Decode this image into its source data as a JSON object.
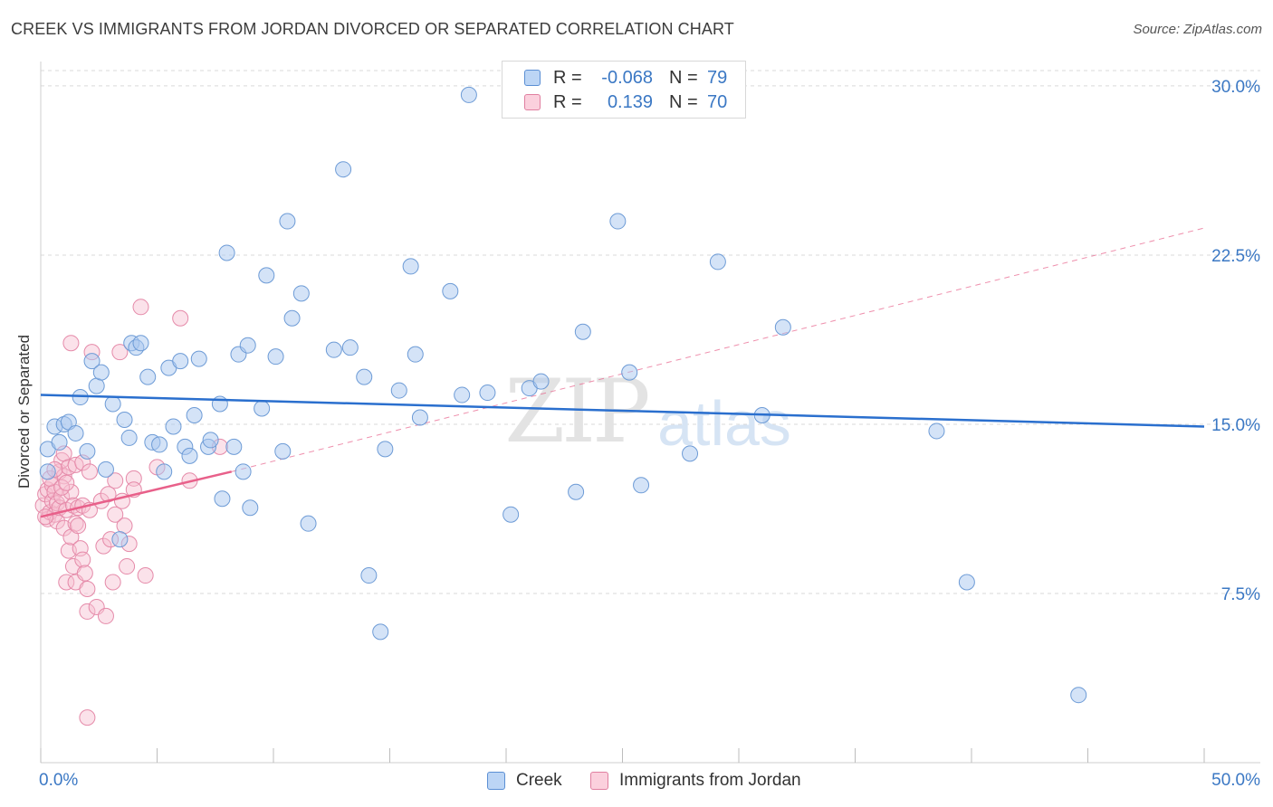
{
  "title": "CREEK VS IMMIGRANTS FROM JORDAN DIVORCED OR SEPARATED CORRELATION CHART",
  "source": "Source: ZipAtlas.com",
  "watermark": "ZIPatlas",
  "legend": {
    "rows": [
      {
        "r_label": "R =",
        "r_value": "-0.068",
        "n_label": "N =",
        "n_value": "79",
        "color": "#a9c8f0",
        "border": "#5b8fd4"
      },
      {
        "r_label": "R =",
        "r_value": "0.139",
        "n_label": "N =",
        "n_value": "70",
        "color": "#f7bfd0",
        "border": "#e07fa0"
      }
    ]
  },
  "bottom_legend": [
    "Creek",
    "Immigrants from Jordan"
  ],
  "colors": {
    "creek_fill": "#a9c8f0",
    "creek_stroke": "#6d9bd6",
    "creek_line": "#2a6fce",
    "jordan_fill": "#f7bfd0",
    "jordan_stroke": "#e58aa9",
    "jordan_line": "#e8608a",
    "tick_text": "#3b78c4",
    "grid": "#d9d9d9"
  },
  "chart_data": {
    "type": "scatter",
    "title": "CREEK VS IMMIGRANTS FROM JORDAN DIVORCED OR SEPARATED CORRELATION CHART",
    "xlabel": "",
    "ylabel": "Divorced or Separated",
    "xlim": [
      0,
      50
    ],
    "ylim": [
      0,
      31
    ],
    "x_tick_labels": [
      "0.0%",
      "50.0%"
    ],
    "y_ticks": [
      7.5,
      15.0,
      22.5,
      30.0
    ],
    "y_tick_labels": [
      "7.5%",
      "15.0%",
      "22.5%",
      "30.0%"
    ],
    "grid": true,
    "series": [
      {
        "name": "Creek",
        "r": -0.068,
        "n": 79,
        "trend": {
          "x": [
            0,
            50
          ],
          "y": [
            16.3,
            14.9
          ],
          "style": "solid"
        },
        "points": [
          [
            0.3,
            12.9
          ],
          [
            0.3,
            13.9
          ],
          [
            0.6,
            14.9
          ],
          [
            0.8,
            14.2
          ],
          [
            1.0,
            15.0
          ],
          [
            1.2,
            15.1
          ],
          [
            1.5,
            14.6
          ],
          [
            1.7,
            16.2
          ],
          [
            2.0,
            13.8
          ],
          [
            2.2,
            17.8
          ],
          [
            2.4,
            16.7
          ],
          [
            2.6,
            17.3
          ],
          [
            2.8,
            13.0
          ],
          [
            3.1,
            15.9
          ],
          [
            3.4,
            9.9
          ],
          [
            3.6,
            15.2
          ],
          [
            3.8,
            14.4
          ],
          [
            3.9,
            18.6
          ],
          [
            4.1,
            18.4
          ],
          [
            4.3,
            18.6
          ],
          [
            4.6,
            17.1
          ],
          [
            4.8,
            14.2
          ],
          [
            5.1,
            14.1
          ],
          [
            5.3,
            12.9
          ],
          [
            5.5,
            17.5
          ],
          [
            5.7,
            14.9
          ],
          [
            6.0,
            17.8
          ],
          [
            6.2,
            14.0
          ],
          [
            6.4,
            13.6
          ],
          [
            6.6,
            15.4
          ],
          [
            6.8,
            17.9
          ],
          [
            7.2,
            14.0
          ],
          [
            7.3,
            14.3
          ],
          [
            7.7,
            15.9
          ],
          [
            7.8,
            11.7
          ],
          [
            8.0,
            22.6
          ],
          [
            8.3,
            14.0
          ],
          [
            8.5,
            18.1
          ],
          [
            8.7,
            12.9
          ],
          [
            8.9,
            18.5
          ],
          [
            9.0,
            11.3
          ],
          [
            9.5,
            15.7
          ],
          [
            9.7,
            21.6
          ],
          [
            10.1,
            18.0
          ],
          [
            10.4,
            13.8
          ],
          [
            10.6,
            24.0
          ],
          [
            10.8,
            19.7
          ],
          [
            11.2,
            20.8
          ],
          [
            11.5,
            10.6
          ],
          [
            12.6,
            18.3
          ],
          [
            13.0,
            26.3
          ],
          [
            13.3,
            18.4
          ],
          [
            13.9,
            17.1
          ],
          [
            14.1,
            8.3
          ],
          [
            14.6,
            5.8
          ],
          [
            14.8,
            13.9
          ],
          [
            15.4,
            16.5
          ],
          [
            15.9,
            22.0
          ],
          [
            16.1,
            18.1
          ],
          [
            16.3,
            15.3
          ],
          [
            17.6,
            20.9
          ],
          [
            18.1,
            16.3
          ],
          [
            18.4,
            29.6
          ],
          [
            19.2,
            16.4
          ],
          [
            20.2,
            11.0
          ],
          [
            21.0,
            16.6
          ],
          [
            21.5,
            16.9
          ],
          [
            23.0,
            12.0
          ],
          [
            23.3,
            19.1
          ],
          [
            24.8,
            24.0
          ],
          [
            25.3,
            17.3
          ],
          [
            25.8,
            12.3
          ],
          [
            27.9,
            13.7
          ],
          [
            29.1,
            22.2
          ],
          [
            31.0,
            15.4
          ],
          [
            31.9,
            19.3
          ],
          [
            38.5,
            14.7
          ],
          [
            39.8,
            8.0
          ],
          [
            44.6,
            3.0
          ]
        ]
      },
      {
        "name": "Immigrants from Jordan",
        "r": 0.139,
        "n": 70,
        "trend": {
          "x": [
            0,
            8.2
          ],
          "y": [
            10.9,
            12.9
          ],
          "style": "solid"
        },
        "trend_extended": {
          "x": [
            8.2,
            50
          ],
          "y": [
            12.9,
            23.7
          ],
          "style": "dashed"
        },
        "points": [
          [
            0.1,
            11.4
          ],
          [
            0.2,
            11.9
          ],
          [
            0.3,
            10.8
          ],
          [
            0.3,
            12.1
          ],
          [
            0.4,
            11.1
          ],
          [
            0.5,
            11.6
          ],
          [
            0.5,
            12.3
          ],
          [
            0.6,
            11.0
          ],
          [
            0.6,
            12.0
          ],
          [
            0.7,
            10.7
          ],
          [
            0.7,
            11.5
          ],
          [
            0.8,
            11.3
          ],
          [
            0.8,
            12.9
          ],
          [
            0.9,
            13.4
          ],
          [
            0.9,
            11.8
          ],
          [
            1.0,
            12.7
          ],
          [
            1.0,
            13.7
          ],
          [
            1.0,
            10.4
          ],
          [
            1.1,
            8.0
          ],
          [
            1.1,
            11.2
          ],
          [
            1.2,
            13.1
          ],
          [
            1.2,
            9.4
          ],
          [
            1.3,
            10.0
          ],
          [
            1.3,
            12.0
          ],
          [
            1.4,
            8.7
          ],
          [
            1.4,
            11.4
          ],
          [
            1.5,
            10.6
          ],
          [
            1.5,
            8.0
          ],
          [
            1.5,
            13.2
          ],
          [
            1.6,
            11.3
          ],
          [
            1.6,
            10.5
          ],
          [
            1.7,
            9.5
          ],
          [
            1.8,
            13.3
          ],
          [
            1.8,
            11.4
          ],
          [
            1.8,
            9.0
          ],
          [
            1.9,
            8.4
          ],
          [
            2.0,
            7.7
          ],
          [
            2.0,
            6.7
          ],
          [
            2.0,
            2.0
          ],
          [
            2.1,
            11.2
          ],
          [
            2.1,
            12.9
          ],
          [
            2.2,
            18.2
          ],
          [
            2.4,
            6.9
          ],
          [
            2.6,
            11.6
          ],
          [
            2.7,
            9.6
          ],
          [
            2.8,
            6.5
          ],
          [
            3.1,
            8.0
          ],
          [
            3.2,
            11.0
          ],
          [
            3.2,
            12.5
          ],
          [
            3.4,
            18.2
          ],
          [
            3.5,
            11.6
          ],
          [
            3.6,
            10.5
          ],
          [
            3.7,
            8.7
          ],
          [
            3.8,
            9.7
          ],
          [
            4.0,
            12.6
          ],
          [
            4.0,
            12.1
          ],
          [
            4.3,
            20.2
          ],
          [
            4.5,
            8.3
          ],
          [
            5.0,
            13.1
          ],
          [
            6.0,
            19.7
          ],
          [
            6.4,
            12.5
          ],
          [
            7.7,
            14.0
          ],
          [
            0.2,
            10.9
          ],
          [
            0.4,
            12.6
          ],
          [
            0.9,
            12.2
          ],
          [
            1.3,
            18.6
          ],
          [
            2.9,
            11.9
          ],
          [
            3.0,
            9.9
          ],
          [
            0.6,
            13.0
          ],
          [
            1.1,
            12.4
          ]
        ]
      }
    ]
  }
}
